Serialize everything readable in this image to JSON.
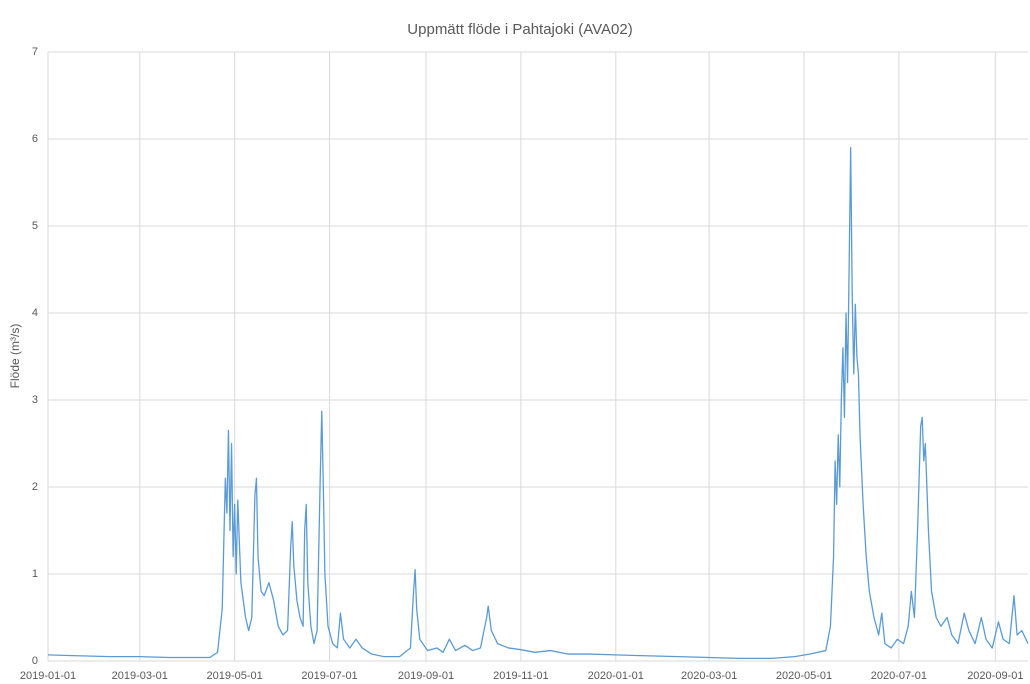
{
  "chart_data": {
    "type": "line",
    "title": "Uppmätt flöde i Pahtajoki (AVA02)",
    "ylabel": "Flöde (m³/s)",
    "x": [
      "2019-01-01",
      "2019-01-20",
      "2019-02-10",
      "2019-03-01",
      "2019-03-20",
      "2019-04-05",
      "2019-04-15",
      "2019-04-20",
      "2019-04-23",
      "2019-04-25",
      "2019-04-26",
      "2019-04-27",
      "2019-04-28",
      "2019-04-29",
      "2019-04-30",
      "2019-05-01",
      "2019-05-02",
      "2019-05-03",
      "2019-05-05",
      "2019-05-08",
      "2019-05-10",
      "2019-05-12",
      "2019-05-14",
      "2019-05-15",
      "2019-05-16",
      "2019-05-18",
      "2019-05-20",
      "2019-05-23",
      "2019-05-26",
      "2019-05-29",
      "2019-06-01",
      "2019-06-04",
      "2019-06-06",
      "2019-06-07",
      "2019-06-08",
      "2019-06-10",
      "2019-06-12",
      "2019-06-14",
      "2019-06-15",
      "2019-06-16",
      "2019-06-17",
      "2019-06-19",
      "2019-06-21",
      "2019-06-23",
      "2019-06-25",
      "2019-06-26",
      "2019-06-27",
      "2019-06-28",
      "2019-06-30",
      "2019-07-03",
      "2019-07-06",
      "2019-07-08",
      "2019-07-10",
      "2019-07-14",
      "2019-07-18",
      "2019-07-22",
      "2019-07-28",
      "2019-08-05",
      "2019-08-15",
      "2019-08-22",
      "2019-08-24",
      "2019-08-25",
      "2019-08-26",
      "2019-08-28",
      "2019-09-02",
      "2019-09-08",
      "2019-09-12",
      "2019-09-16",
      "2019-09-20",
      "2019-09-26",
      "2019-10-01",
      "2019-10-06",
      "2019-10-10",
      "2019-10-11",
      "2019-10-13",
      "2019-10-17",
      "2019-10-24",
      "2019-11-01",
      "2019-11-10",
      "2019-11-20",
      "2019-12-01",
      "2019-12-15",
      "2020-01-01",
      "2020-01-20",
      "2020-02-10",
      "2020-03-01",
      "2020-03-20",
      "2020-04-10",
      "2020-04-25",
      "2020-05-05",
      "2020-05-15",
      "2020-05-18",
      "2020-05-20",
      "2020-05-21",
      "2020-05-22",
      "2020-05-23",
      "2020-05-24",
      "2020-05-25",
      "2020-05-26",
      "2020-05-27",
      "2020-05-28",
      "2020-05-29",
      "2020-05-30",
      "2020-05-31",
      "2020-06-01",
      "2020-06-02",
      "2020-06-03",
      "2020-06-04",
      "2020-06-05",
      "2020-06-06",
      "2020-06-08",
      "2020-06-10",
      "2020-06-12",
      "2020-06-15",
      "2020-06-18",
      "2020-06-20",
      "2020-06-22",
      "2020-06-26",
      "2020-06-30",
      "2020-07-04",
      "2020-07-07",
      "2020-07-09",
      "2020-07-11",
      "2020-07-13",
      "2020-07-15",
      "2020-07-16",
      "2020-07-17",
      "2020-07-18",
      "2020-07-20",
      "2020-07-22",
      "2020-07-25",
      "2020-07-28",
      "2020-08-01",
      "2020-08-04",
      "2020-08-08",
      "2020-08-12",
      "2020-08-15",
      "2020-08-19",
      "2020-08-23",
      "2020-08-26",
      "2020-08-30",
      "2020-09-03",
      "2020-09-06",
      "2020-09-10",
      "2020-09-13",
      "2020-09-15",
      "2020-09-18",
      "2020-09-22"
    ],
    "series": [
      {
        "name": "Flöde",
        "color": "#5b9bd5",
        "values": [
          0.07,
          0.06,
          0.05,
          0.05,
          0.04,
          0.04,
          0.04,
          0.1,
          0.6,
          2.1,
          1.7,
          2.65,
          1.5,
          2.5,
          1.2,
          1.8,
          1.0,
          1.85,
          0.9,
          0.5,
          0.35,
          0.5,
          1.9,
          2.1,
          1.2,
          0.8,
          0.75,
          0.9,
          0.7,
          0.4,
          0.3,
          0.35,
          1.3,
          1.6,
          1.1,
          0.7,
          0.5,
          0.4,
          1.5,
          1.8,
          0.9,
          0.4,
          0.2,
          0.35,
          2.1,
          2.87,
          2.0,
          1.0,
          0.4,
          0.2,
          0.15,
          0.55,
          0.25,
          0.15,
          0.25,
          0.15,
          0.08,
          0.05,
          0.05,
          0.15,
          0.8,
          1.05,
          0.6,
          0.25,
          0.12,
          0.15,
          0.1,
          0.25,
          0.12,
          0.18,
          0.12,
          0.15,
          0.5,
          0.63,
          0.35,
          0.2,
          0.15,
          0.13,
          0.1,
          0.12,
          0.08,
          0.08,
          0.07,
          0.06,
          0.05,
          0.04,
          0.03,
          0.03,
          0.05,
          0.08,
          0.12,
          0.4,
          1.2,
          2.3,
          1.8,
          2.6,
          2.0,
          3.0,
          3.6,
          2.8,
          4.0,
          3.2,
          4.5,
          5.9,
          4.2,
          3.3,
          4.1,
          3.5,
          3.3,
          2.6,
          1.8,
          1.2,
          0.8,
          0.5,
          0.3,
          0.55,
          0.2,
          0.15,
          0.25,
          0.2,
          0.4,
          0.8,
          0.5,
          1.5,
          2.7,
          2.8,
          2.3,
          2.5,
          1.5,
          0.8,
          0.5,
          0.4,
          0.5,
          0.3,
          0.2,
          0.55,
          0.35,
          0.2,
          0.5,
          0.25,
          0.15,
          0.45,
          0.25,
          0.2,
          0.75,
          0.3,
          0.35,
          0.2
        ]
      }
    ],
    "xlim": [
      "2019-01-01",
      "2020-09-22"
    ],
    "xticks": [
      "2019-01-01",
      "2019-03-01",
      "2019-05-01",
      "2019-07-01",
      "2019-09-01",
      "2019-11-01",
      "2020-01-01",
      "2020-03-01",
      "2020-05-01",
      "2020-07-01",
      "2020-09-01"
    ],
    "ylim": [
      0,
      7
    ],
    "yticks": [
      0,
      1,
      2,
      3,
      4,
      5,
      6,
      7
    ],
    "grid": true
  }
}
